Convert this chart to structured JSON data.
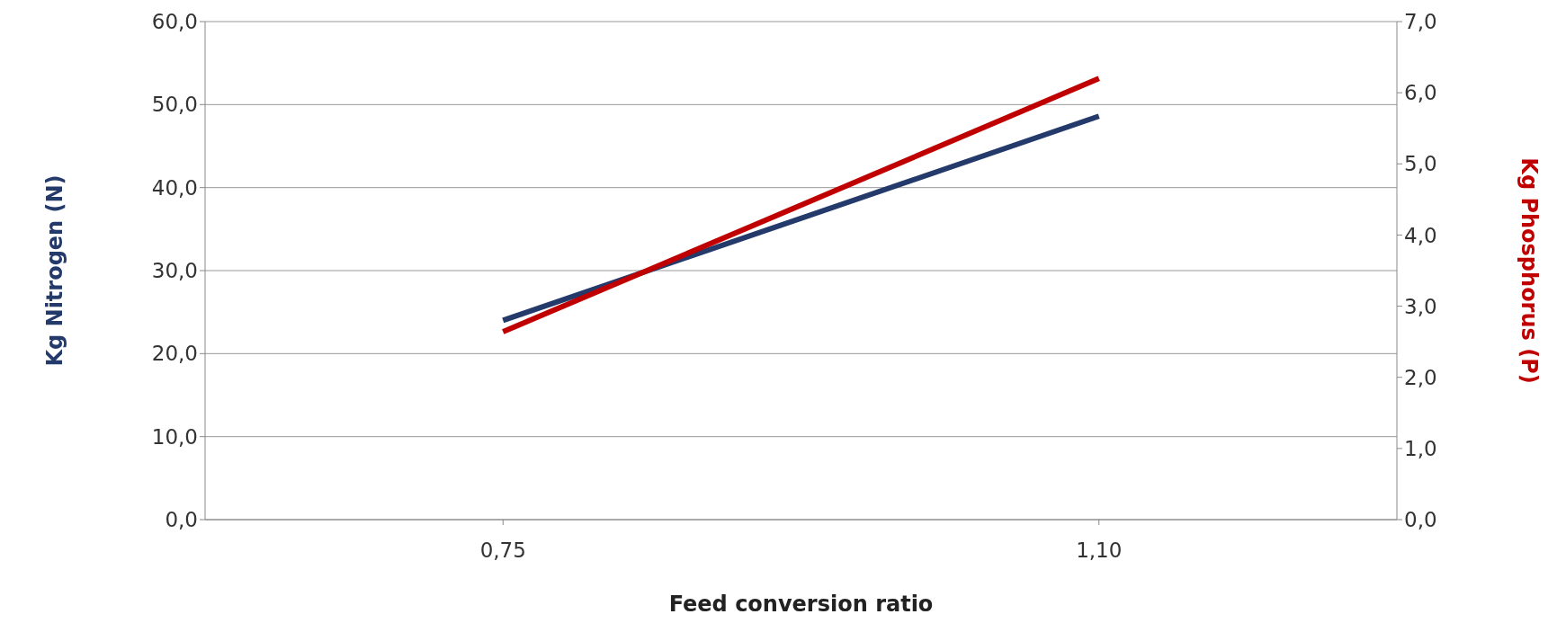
{
  "chart_data": {
    "type": "line",
    "xlabel": "Feed conversion ratio",
    "ylabel": "Kg Nitrogen (N)",
    "y2label": "Kg Phosphorus (P)",
    "categories": [
      "0,75",
      "1,10"
    ],
    "series": [
      {
        "color": "#243a6b",
        "values": [
          24.0,
          48.6
        ]
      },
      {
        "color": "#c00000",
        "values": [
          2.64,
          6.2
        ],
        "axis": "y2"
      }
    ],
    "ylim": [
      0,
      60
    ],
    "yticks": [
      {
        "value": 0,
        "label": "0,0"
      },
      {
        "value": 10,
        "label": "10,0"
      },
      {
        "value": 20,
        "label": "20,0"
      },
      {
        "value": 30,
        "label": "30,0"
      },
      {
        "value": 40,
        "label": "40,0"
      },
      {
        "value": 50,
        "label": "50,0"
      },
      {
        "value": 60,
        "label": "60,0"
      }
    ],
    "y2lim": [
      0,
      7
    ],
    "y2ticks": [
      {
        "value": 0,
        "label": "0,0"
      },
      {
        "value": 1,
        "label": "1,0"
      },
      {
        "value": 2,
        "label": "2,0"
      },
      {
        "value": 3,
        "label": "3,0"
      },
      {
        "value": 4,
        "label": "4,0"
      },
      {
        "value": 5,
        "label": "5,0"
      },
      {
        "value": 6,
        "label": "6,0"
      },
      {
        "value": 7,
        "label": "7,0"
      }
    ],
    "grid": "y",
    "legend": false,
    "marker": "none",
    "line_style": "solid"
  }
}
